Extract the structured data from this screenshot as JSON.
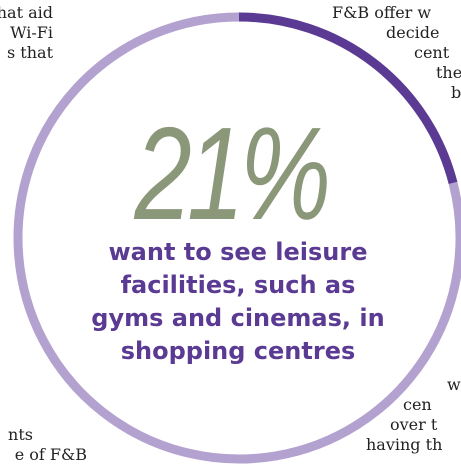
{
  "chart_data": {
    "type": "pie",
    "style": "donut-ring",
    "slices": [
      {
        "value": 21,
        "color": "#5b3a93"
      },
      {
        "value": 79,
        "color": "#b3a1d0"
      }
    ],
    "center_value": "21%",
    "caption_lines": [
      "want to see leisure",
      "facilities, such as",
      "gyms and cinemas, in",
      "shopping centres"
    ]
  },
  "side_text": {
    "top_left": [
      "that aid",
      "Wi-Fi",
      "s that"
    ],
    "top_right": [
      "F&B offer w",
      "decide",
      "cent",
      "the",
      "b"
    ],
    "bottom_right": [
      "w",
      "cen",
      "over t",
      "having th"
    ],
    "bottom_left": [
      "nts",
      "e of F&B"
    ]
  },
  "colors": {
    "highlight": "#5b3a93",
    "ring_rest": "#b3a1d0",
    "stat": "#8b9779",
    "text": "#222222"
  }
}
